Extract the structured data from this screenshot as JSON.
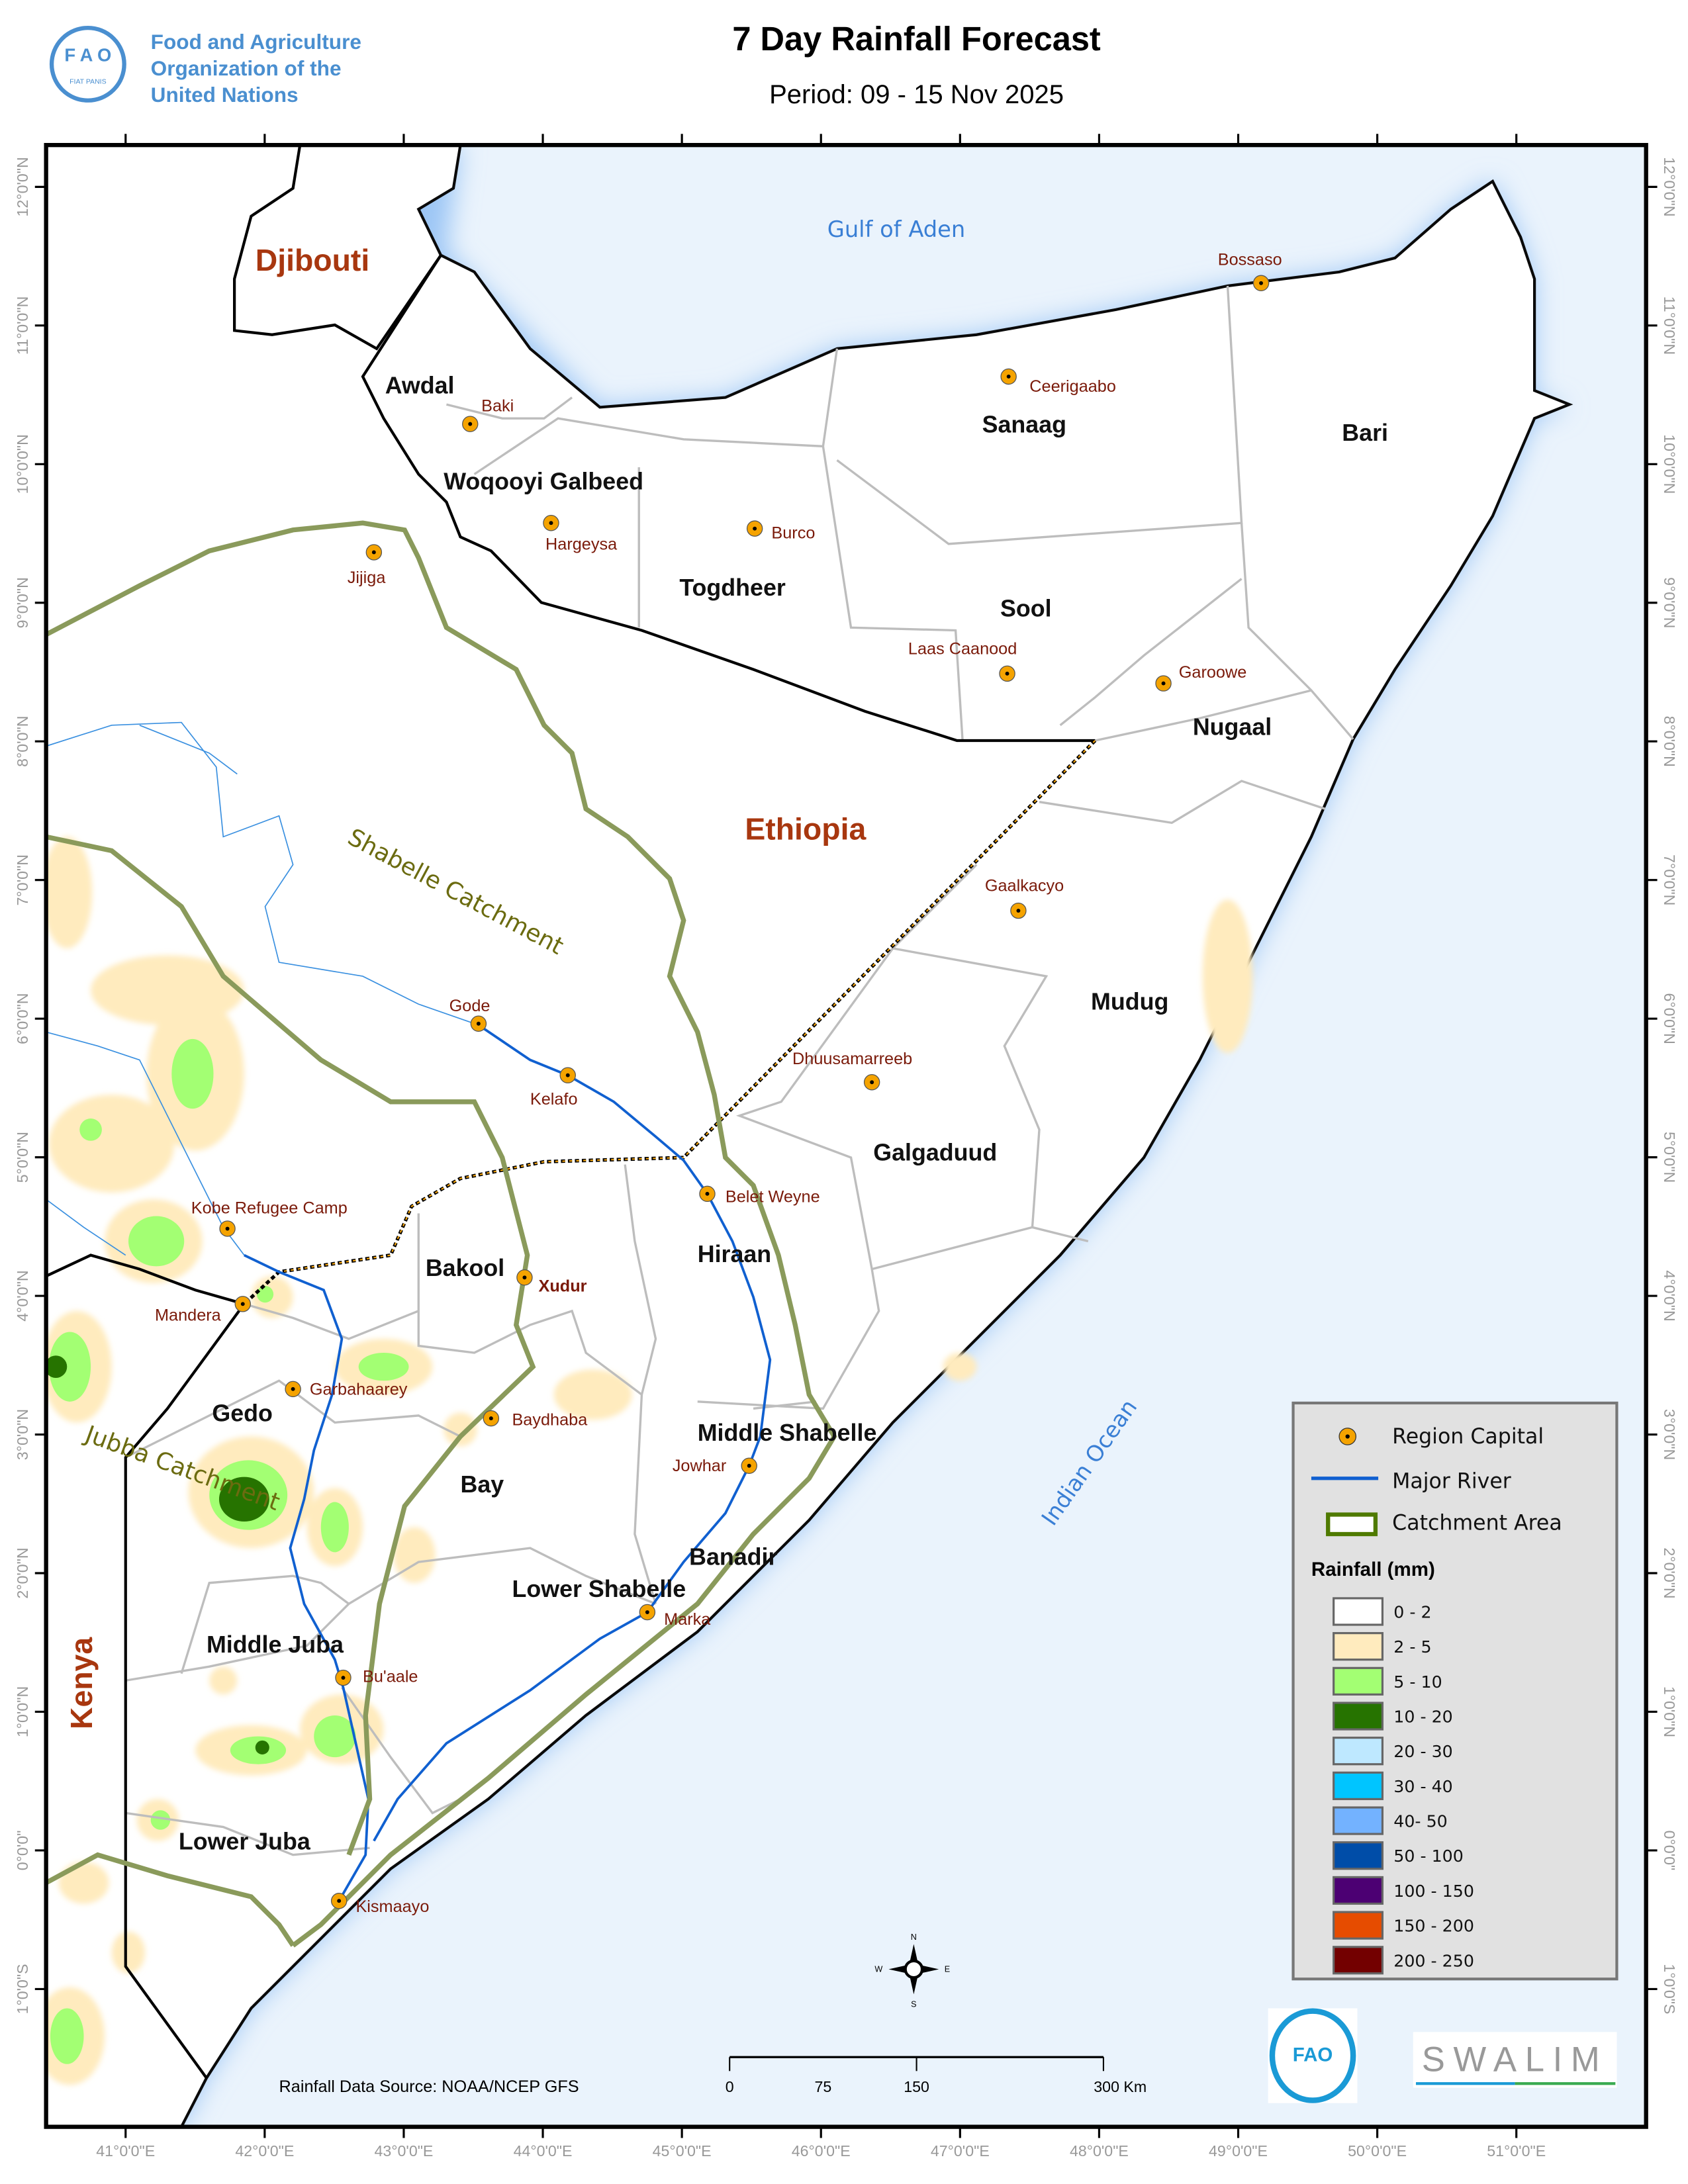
{
  "header": {
    "title": "7 Day Rainfall Forecast",
    "period": "Period: 09 - 15 Nov 2025",
    "org_name_lines": [
      "Food and Agriculture",
      "Organization of the",
      "United Nations"
    ],
    "org_logo_text": "FAO FIAT PANIS"
  },
  "map": {
    "countries": [
      "Djibouti",
      "Ethiopia",
      "Kenya"
    ],
    "water_bodies": [
      "Gulf of Aden",
      "Indian Ocean"
    ],
    "catchments": [
      "Shabelle  Catchment",
      "Jubba Catchment"
    ],
    "regions": [
      "Awdal",
      "Woqooyi Galbeed",
      "Sanaag",
      "Bari",
      "Togdheer",
      "Sool",
      "Nugaal",
      "Mudug",
      "Galgaduud",
      "Hiraan",
      "Bakool",
      "Gedo",
      "Middle Shabelle",
      "Bay",
      "Banadir",
      "Lower Shabelle",
      "Middle Juba",
      "Lower Juba"
    ],
    "cities": [
      "Bossaso",
      "Ceerigaabo",
      "Baki",
      "Hargeysa",
      "Burco",
      "Jijiga",
      "Laas Caanood",
      "Garoowe",
      "Gaalkacyo",
      "Gode",
      "Kelafo",
      "Dhuusamarreeb",
      "Belet Weyne",
      "Kobe Refugee Camp",
      "Xudur",
      "Mandera",
      "Garbahaarey",
      "Baydhaba",
      "Jowhar",
      "Marka",
      "Bu'aale",
      "Kismaayo"
    ],
    "lon_ticks": [
      "41°0'0\"E",
      "42°0'0\"E",
      "43°0'0\"E",
      "44°0'0\"E",
      "45°0'0\"E",
      "46°0'0\"E",
      "47°0'0\"E",
      "48°0'0\"E",
      "49°0'0\"E",
      "50°0'0\"E",
      "51°0'0\"E"
    ],
    "lat_ticks": [
      "12°0'0\"N",
      "11°0'0\"N",
      "10°0'0\"N",
      "9°0'0\"N",
      "8°0'0\"N",
      "7°0'0\"N",
      "6°0'0\"N",
      "5°0'0\"N",
      "4°0'0\"N",
      "3°0'0\"N",
      "2°0'0\"N",
      "1°0'0\"N",
      "0°0'0\"",
      "1°0'0\"S"
    ],
    "compass": {
      "n": "N",
      "s": "S",
      "e": "E",
      "w": "W"
    },
    "colors": {
      "ocean": "#eaf3fc",
      "river": "#1060d0",
      "catchment": "#8a9a5b",
      "capital": "#f5a300",
      "country_label": "#a8370f"
    }
  },
  "legend": {
    "capital_label": "Region Capital",
    "river_label": "Major River",
    "catchment_label": "Catchment Area",
    "rainfall_title": "Rainfall (mm)",
    "classes": [
      {
        "label": "0 - 2",
        "color": "#ffffff"
      },
      {
        "label": "2 - 5",
        "color": "#ffebbe"
      },
      {
        "label": "5 - 10",
        "color": "#a3ff73"
      },
      {
        "label": "10 - 20",
        "color": "#267300"
      },
      {
        "label": "20 - 30",
        "color": "#bee8ff"
      },
      {
        "label": "30 - 40",
        "color": "#00c5ff"
      },
      {
        "label": "40- 50",
        "color": "#73b2ff"
      },
      {
        "label": "50 - 100",
        "color": "#004da8"
      },
      {
        "label": "100 - 150",
        "color": "#4c0073"
      },
      {
        "label": "150 - 200",
        "color": "#e64c00"
      },
      {
        "label": "200 - 250",
        "color": "#730000"
      }
    ]
  },
  "footer": {
    "source": "Rainfall Data Source: NOAA/NCEP GFS",
    "scale_labels": [
      "0",
      "75",
      "150",
      "300 Km"
    ],
    "swalim_logo": "SWALIM"
  }
}
